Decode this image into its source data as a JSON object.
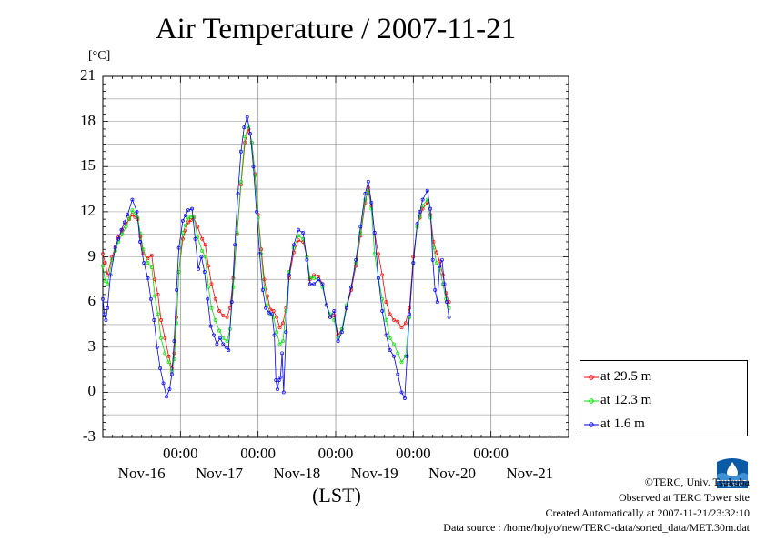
{
  "header": {
    "title": "Air Temperature / 2007-11-21",
    "unit": "[°C]"
  },
  "chart_data": {
    "type": "line",
    "title": "Air Temperature / 2007-11-21",
    "ylabel": "[°C]",
    "xlabel": "(LST)",
    "ylim": [
      -3,
      21
    ],
    "yticks": [
      -3,
      0,
      3,
      6,
      9,
      12,
      15,
      18,
      21
    ],
    "xlim": [
      -1.0,
      5.0
    ],
    "x_unit": "days relative to 2007-11-17 00:00",
    "x_time_labels": [
      "00:00",
      "00:00",
      "00:00",
      "00:00",
      "00:00"
    ],
    "x_day_labels": [
      "Nov-16",
      "Nov-17",
      "Nov-18",
      "Nov-19",
      "Nov-20",
      "Nov-21"
    ],
    "grid": true,
    "legend_position": "bottom-right, outside plot",
    "series": [
      {
        "name": "at 29.5 m",
        "color": "#ff0000",
        "points": [
          [
            -1.0,
            9.2
          ],
          [
            -0.97,
            8.6
          ],
          [
            -0.94,
            7.8
          ],
          [
            -0.88,
            9.0
          ],
          [
            -0.8,
            10.3
          ],
          [
            -0.7,
            11.2
          ],
          [
            -0.62,
            11.8
          ],
          [
            -0.55,
            11.5
          ],
          [
            -0.48,
            9.2
          ],
          [
            -0.42,
            8.9
          ],
          [
            -0.37,
            9.1
          ],
          [
            -0.33,
            7.5
          ],
          [
            -0.29,
            6.5
          ],
          [
            -0.25,
            4.8
          ],
          [
            -0.2,
            3.6
          ],
          [
            -0.15,
            2.4
          ],
          [
            -0.11,
            1.6
          ],
          [
            -0.08,
            2.6
          ],
          [
            -0.05,
            5.0
          ],
          [
            -0.02,
            8.0
          ],
          [
            0.03,
            10.2
          ],
          [
            0.1,
            11.3
          ],
          [
            0.17,
            11.6
          ],
          [
            0.22,
            11.0
          ],
          [
            0.28,
            10.2
          ],
          [
            0.32,
            9.8
          ],
          [
            0.36,
            8.4
          ],
          [
            0.4,
            7.2
          ],
          [
            0.45,
            6.2
          ],
          [
            0.5,
            5.4
          ],
          [
            0.55,
            5.1
          ],
          [
            0.6,
            5.0
          ],
          [
            0.64,
            5.6
          ],
          [
            0.68,
            7.6
          ],
          [
            0.73,
            10.5
          ],
          [
            0.78,
            13.8
          ],
          [
            0.83,
            16.6
          ],
          [
            0.88,
            17.5
          ],
          [
            0.92,
            16.6
          ],
          [
            0.96,
            14.5
          ],
          [
            1.0,
            11.8
          ],
          [
            1.04,
            9.5
          ],
          [
            1.08,
            7.5
          ],
          [
            1.12,
            6.4
          ],
          [
            1.16,
            5.5
          ],
          [
            1.2,
            5.4
          ],
          [
            1.24,
            5.0
          ],
          [
            1.28,
            4.3
          ],
          [
            1.32,
            4.6
          ],
          [
            1.36,
            5.6
          ],
          [
            1.4,
            7.6
          ],
          [
            1.46,
            9.3
          ],
          [
            1.52,
            10.1
          ],
          [
            1.58,
            10.0
          ],
          [
            1.63,
            9.0
          ],
          [
            1.67,
            7.5
          ],
          [
            1.72,
            7.8
          ],
          [
            1.78,
            7.7
          ],
          [
            1.83,
            7.2
          ],
          [
            1.88,
            5.8
          ],
          [
            1.93,
            5.0
          ],
          [
            1.98,
            5.1
          ],
          [
            2.03,
            3.8
          ],
          [
            2.08,
            4.2
          ],
          [
            2.14,
            5.6
          ],
          [
            2.2,
            6.8
          ],
          [
            2.26,
            8.4
          ],
          [
            2.32,
            10.4
          ],
          [
            2.38,
            12.6
          ],
          [
            2.42,
            13.6
          ],
          [
            2.46,
            12.4
          ],
          [
            2.5,
            10.6
          ],
          [
            2.55,
            9.2
          ],
          [
            2.6,
            7.8
          ],
          [
            2.65,
            6.0
          ],
          [
            2.7,
            5.2
          ],
          [
            2.75,
            4.8
          ],
          [
            2.8,
            4.7
          ],
          [
            2.85,
            4.3
          ],
          [
            2.9,
            4.6
          ],
          [
            2.95,
            5.6
          ],
          [
            3.0,
            9.0
          ],
          [
            3.05,
            11.0
          ],
          [
            3.12,
            12.2
          ],
          [
            3.18,
            12.6
          ],
          [
            3.22,
            11.8
          ],
          [
            3.26,
            10.0
          ],
          [
            3.3,
            9.3
          ],
          [
            3.34,
            8.7
          ],
          [
            3.38,
            7.8
          ],
          [
            3.42,
            6.6
          ],
          [
            3.46,
            6.0
          ]
        ]
      },
      {
        "name": "at 12.3 m",
        "color": "#00e000",
        "points": [
          [
            -1.0,
            8.4
          ],
          [
            -0.97,
            7.4
          ],
          [
            -0.94,
            7.2
          ],
          [
            -0.88,
            8.8
          ],
          [
            -0.8,
            10.0
          ],
          [
            -0.7,
            11.0
          ],
          [
            -0.62,
            12.1
          ],
          [
            -0.55,
            11.6
          ],
          [
            -0.48,
            9.5
          ],
          [
            -0.42,
            8.6
          ],
          [
            -0.37,
            8.3
          ],
          [
            -0.33,
            6.4
          ],
          [
            -0.29,
            5.2
          ],
          [
            -0.25,
            3.6
          ],
          [
            -0.2,
            2.6
          ],
          [
            -0.15,
            2.0
          ],
          [
            -0.11,
            1.4
          ],
          [
            -0.08,
            2.2
          ],
          [
            -0.05,
            4.6
          ],
          [
            -0.02,
            8.0
          ],
          [
            0.03,
            10.6
          ],
          [
            0.1,
            11.6
          ],
          [
            0.17,
            11.7
          ],
          [
            0.22,
            10.3
          ],
          [
            0.28,
            9.4
          ],
          [
            0.32,
            9.0
          ],
          [
            0.36,
            7.0
          ],
          [
            0.4,
            5.6
          ],
          [
            0.45,
            4.8
          ],
          [
            0.5,
            4.1
          ],
          [
            0.55,
            3.6
          ],
          [
            0.6,
            3.4
          ],
          [
            0.64,
            4.2
          ],
          [
            0.68,
            7.0
          ],
          [
            0.73,
            10.6
          ],
          [
            0.78,
            14.0
          ],
          [
            0.83,
            17.0
          ],
          [
            0.88,
            17.7
          ],
          [
            0.92,
            16.6
          ],
          [
            0.96,
            14.4
          ],
          [
            1.0,
            11.6
          ],
          [
            1.04,
            9.2
          ],
          [
            1.08,
            7.0
          ],
          [
            1.12,
            5.8
          ],
          [
            1.16,
            5.2
          ],
          [
            1.2,
            5.0
          ],
          [
            1.24,
            4.0
          ],
          [
            1.28,
            3.2
          ],
          [
            1.32,
            3.4
          ],
          [
            1.36,
            5.4
          ],
          [
            1.4,
            8.0
          ],
          [
            1.46,
            9.6
          ],
          [
            1.52,
            10.4
          ],
          [
            1.58,
            10.2
          ],
          [
            1.63,
            9.0
          ],
          [
            1.67,
            7.6
          ],
          [
            1.72,
            7.6
          ],
          [
            1.78,
            7.5
          ],
          [
            1.83,
            7.0
          ],
          [
            1.88,
            5.8
          ],
          [
            1.93,
            5.2
          ],
          [
            1.98,
            4.8
          ],
          [
            2.03,
            3.6
          ],
          [
            2.08,
            4.2
          ],
          [
            2.14,
            5.8
          ],
          [
            2.2,
            7.0
          ],
          [
            2.26,
            8.6
          ],
          [
            2.32,
            10.6
          ],
          [
            2.38,
            12.8
          ],
          [
            2.42,
            13.4
          ],
          [
            2.46,
            12.2
          ],
          [
            2.5,
            9.2
          ],
          [
            2.55,
            7.6
          ],
          [
            2.6,
            6.2
          ],
          [
            2.65,
            4.8
          ],
          [
            2.7,
            3.6
          ],
          [
            2.75,
            3.2
          ],
          [
            2.8,
            2.6
          ],
          [
            2.85,
            2.0
          ],
          [
            2.9,
            2.4
          ],
          [
            2.95,
            5.0
          ],
          [
            3.0,
            8.6
          ],
          [
            3.05,
            11.0
          ],
          [
            3.12,
            12.4
          ],
          [
            3.18,
            12.8
          ],
          [
            3.22,
            11.6
          ],
          [
            3.26,
            9.6
          ],
          [
            3.3,
            8.6
          ],
          [
            3.34,
            8.2
          ],
          [
            3.38,
            7.2
          ],
          [
            3.42,
            6.2
          ],
          [
            3.46,
            5.6
          ]
        ]
      },
      {
        "name": "at 1.6 m",
        "color": "#0000ff",
        "points": [
          [
            -1.0,
            6.2
          ],
          [
            -0.98,
            5.2
          ],
          [
            -0.96,
            4.8
          ],
          [
            -0.94,
            5.6
          ],
          [
            -0.9,
            7.8
          ],
          [
            -0.84,
            9.6
          ],
          [
            -0.76,
            10.8
          ],
          [
            -0.68,
            11.8
          ],
          [
            -0.62,
            12.8
          ],
          [
            -0.56,
            12.0
          ],
          [
            -0.52,
            10.0
          ],
          [
            -0.47,
            8.6
          ],
          [
            -0.42,
            7.6
          ],
          [
            -0.38,
            6.2
          ],
          [
            -0.34,
            4.8
          ],
          [
            -0.3,
            3.0
          ],
          [
            -0.26,
            1.6
          ],
          [
            -0.22,
            0.6
          ],
          [
            -0.18,
            -0.3
          ],
          [
            -0.14,
            0.2
          ],
          [
            -0.11,
            1.2
          ],
          [
            -0.08,
            3.4
          ],
          [
            -0.05,
            6.8
          ],
          [
            -0.02,
            9.6
          ],
          [
            0.03,
            11.4
          ],
          [
            0.1,
            12.1
          ],
          [
            0.15,
            12.2
          ],
          [
            0.19,
            10.2
          ],
          [
            0.23,
            8.2
          ],
          [
            0.27,
            9.0
          ],
          [
            0.31,
            8.0
          ],
          [
            0.35,
            6.2
          ],
          [
            0.39,
            4.4
          ],
          [
            0.43,
            3.8
          ],
          [
            0.47,
            3.2
          ],
          [
            0.51,
            3.6
          ],
          [
            0.55,
            3.2
          ],
          [
            0.59,
            3.0
          ],
          [
            0.62,
            2.8
          ],
          [
            0.66,
            6.0
          ],
          [
            0.7,
            9.8
          ],
          [
            0.74,
            13.2
          ],
          [
            0.78,
            16.0
          ],
          [
            0.82,
            17.6
          ],
          [
            0.86,
            18.3
          ],
          [
            0.9,
            17.2
          ],
          [
            0.94,
            15.0
          ],
          [
            0.98,
            12.0
          ],
          [
            1.02,
            9.2
          ],
          [
            1.06,
            6.8
          ],
          [
            1.1,
            5.6
          ],
          [
            1.14,
            5.3
          ],
          [
            1.18,
            5.2
          ],
          [
            1.21,
            3.8
          ],
          [
            1.23,
            0.8
          ],
          [
            1.25,
            0.2
          ],
          [
            1.27,
            0.8
          ],
          [
            1.29,
            1.0
          ],
          [
            1.31,
            2.6
          ],
          [
            1.33,
            0.0
          ],
          [
            1.36,
            4.0
          ],
          [
            1.4,
            7.8
          ],
          [
            1.46,
            9.8
          ],
          [
            1.52,
            10.8
          ],
          [
            1.58,
            10.6
          ],
          [
            1.63,
            8.8
          ],
          [
            1.67,
            7.2
          ],
          [
            1.72,
            7.2
          ],
          [
            1.78,
            7.5
          ],
          [
            1.83,
            7.2
          ],
          [
            1.88,
            5.8
          ],
          [
            1.93,
            5.0
          ],
          [
            1.98,
            5.4
          ],
          [
            2.03,
            3.4
          ],
          [
            2.08,
            4.0
          ],
          [
            2.14,
            5.6
          ],
          [
            2.2,
            7.0
          ],
          [
            2.26,
            8.8
          ],
          [
            2.32,
            11.0
          ],
          [
            2.38,
            13.2
          ],
          [
            2.42,
            14.0
          ],
          [
            2.46,
            12.6
          ],
          [
            2.5,
            10.6
          ],
          [
            2.55,
            7.6
          ],
          [
            2.6,
            5.4
          ],
          [
            2.65,
            3.8
          ],
          [
            2.7,
            2.8
          ],
          [
            2.75,
            2.4
          ],
          [
            2.8,
            1.2
          ],
          [
            2.85,
            0.0
          ],
          [
            2.89,
            -0.4
          ],
          [
            2.92,
            2.4
          ],
          [
            2.95,
            5.2
          ],
          [
            3.0,
            8.6
          ],
          [
            3.05,
            11.2
          ],
          [
            3.12,
            12.8
          ],
          [
            3.18,
            13.4
          ],
          [
            3.22,
            12.2
          ],
          [
            3.25,
            8.8
          ],
          [
            3.28,
            6.8
          ],
          [
            3.31,
            6.0
          ],
          [
            3.34,
            8.4
          ],
          [
            3.37,
            8.8
          ],
          [
            3.4,
            7.2
          ],
          [
            3.43,
            6.0
          ],
          [
            3.46,
            5.0
          ]
        ]
      }
    ]
  },
  "legend": {
    "items": [
      "at 29.5 m",
      "at 12.3 m",
      "at 1.6 m"
    ]
  },
  "footer": {
    "xaxis_title": "(LST)",
    "credit": "©TERC, Univ. Tsukuba",
    "observed": "Observed at TERC Tower site",
    "created": "Created Automatically at 2007-11-21/23:32:10",
    "source": "Data source : /home/hojyo/new/TERC-data/sorted_data/MET.30m.dat",
    "logo_text": "T E R C"
  }
}
